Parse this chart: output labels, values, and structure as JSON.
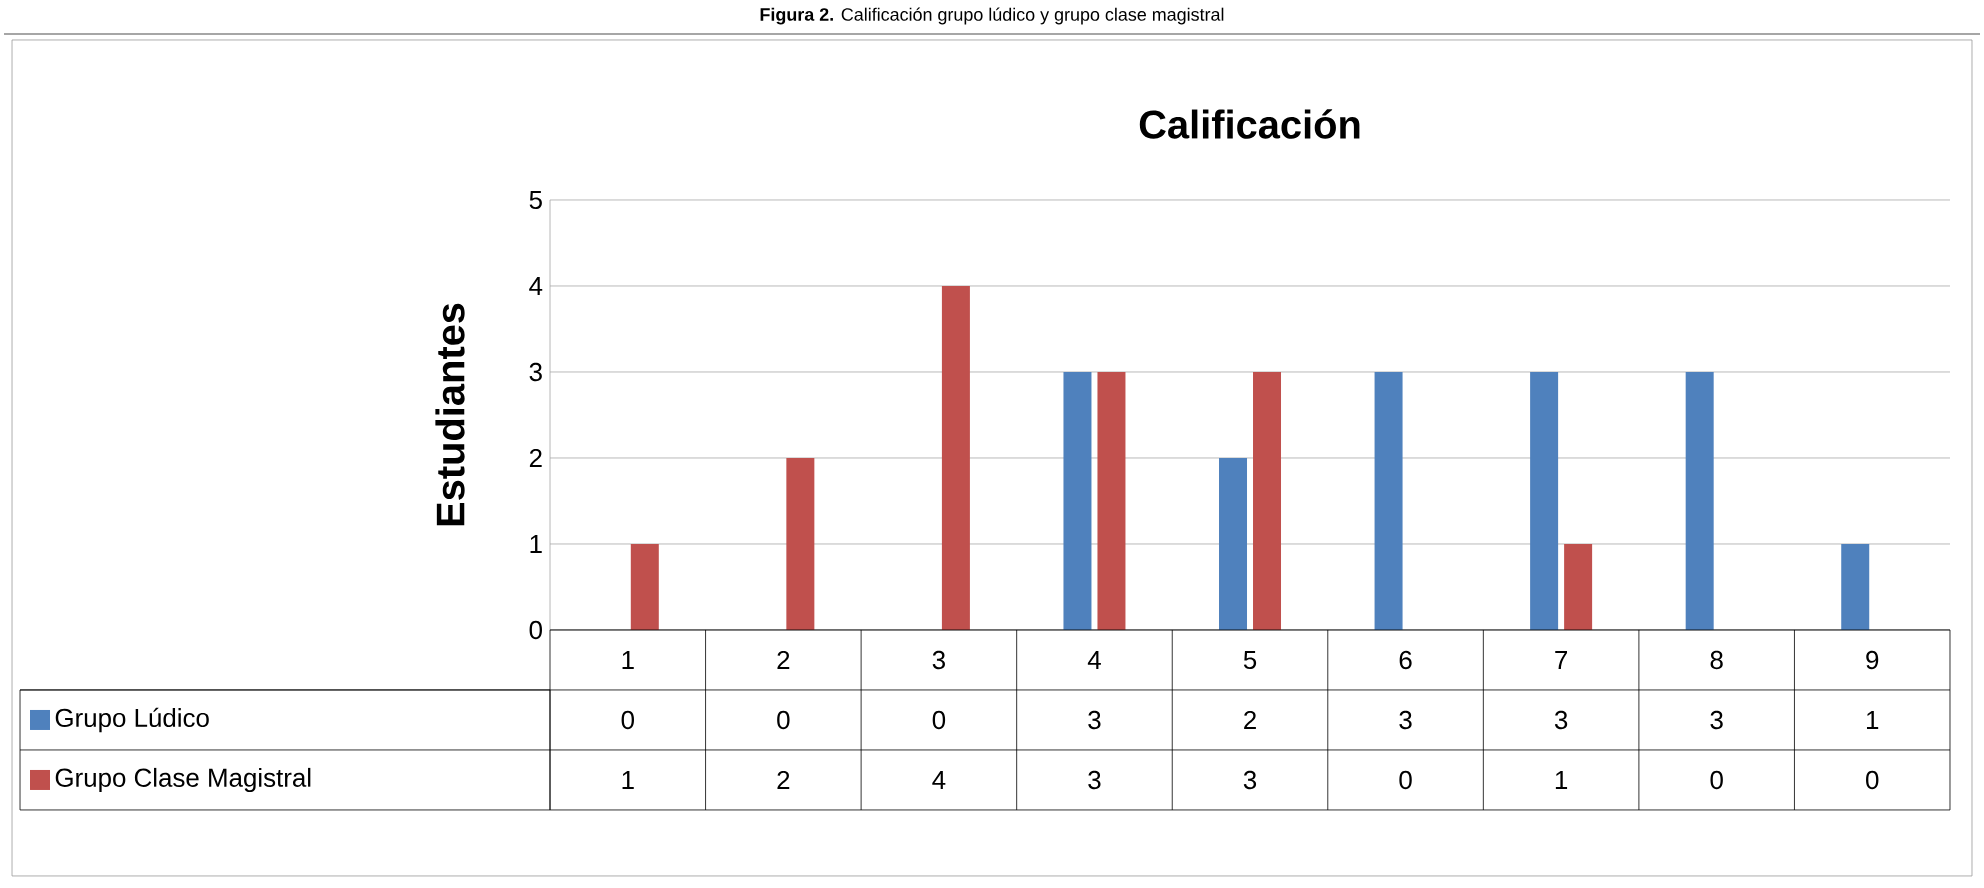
{
  "chart_data": {
    "type": "bar",
    "title": "Calificación",
    "ylabel": "Estudiantes",
    "annotations": [
      "**Figura 2.** Calificación grupo lúdico y grupo clase magistral"
    ],
    "categories": [
      "1",
      "2",
      "3",
      "4",
      "5",
      "6",
      "7",
      "8",
      "9"
    ],
    "series": [
      {
        "name": "Grupo Lúdico",
        "color": "#4f81bd",
        "values": [
          0,
          0,
          0,
          3,
          2,
          3,
          3,
          3,
          1
        ]
      },
      {
        "name": "Grupo Clase Magistral",
        "color": "#c0504d",
        "values": [
          1,
          2,
          4,
          3,
          3,
          0,
          1,
          0,
          0
        ]
      }
    ],
    "ylim": [
      0,
      5
    ],
    "yticks": [
      0,
      1,
      2,
      3,
      4,
      5
    ],
    "grid": "y",
    "data_labels": true,
    "legend": "bottom"
  }
}
